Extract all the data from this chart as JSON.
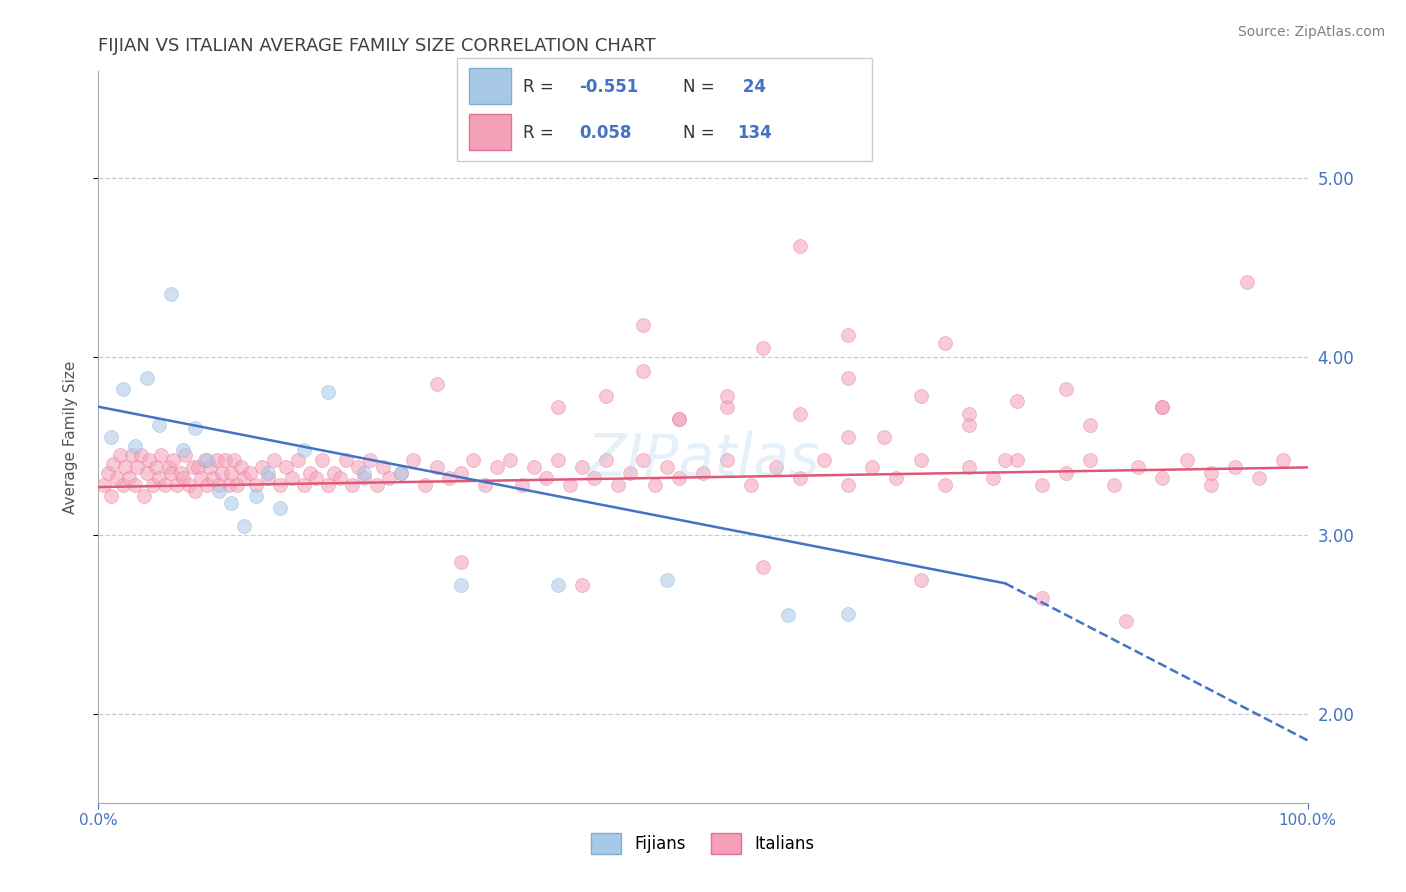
{
  "title": "FIJIAN VS ITALIAN AVERAGE FAMILY SIZE CORRELATION CHART",
  "source": "Source: ZipAtlas.com",
  "ylabel": "Average Family Size",
  "xlim": [
    0.0,
    1.0
  ],
  "ylim": [
    1.5,
    5.6
  ],
  "yticks": [
    2.0,
    3.0,
    4.0,
    5.0
  ],
  "ytick_labels": [
    "2.00",
    "3.00",
    "4.00",
    "5.00"
  ],
  "xticks": [
    0.0,
    1.0
  ],
  "xtick_labels": [
    "0.0%",
    "100.0%"
  ],
  "fijian_color": "#a8c8e8",
  "fijian_edge_color": "#7bafd4",
  "italian_color": "#f4a0b8",
  "italian_edge_color": "#e87090",
  "trendline_fijian_color": "#4472c4",
  "trendline_italian_color": "#e05878",
  "background_color": "#ffffff",
  "grid_color": "#cccccc",
  "title_color": "#404040",
  "axis_color": "#4472c4",
  "marker_size": 100,
  "marker_alpha": 0.55,
  "fijian_r_color": "#4472c4",
  "italian_r_color": "#4472c4",
  "fijian_trendline_x0": 0.0,
  "fijian_trendline_y0": 3.72,
  "fijian_trendline_x1": 0.75,
  "fijian_trendline_y1": 2.73,
  "fijian_trendline_dash_x1": 1.0,
  "fijian_trendline_dash_y1": 1.85,
  "italian_trendline_x0": 0.0,
  "italian_trendline_y0": 3.27,
  "italian_trendline_x1": 1.0,
  "italian_trendline_y1": 3.38,
  "fijian_x": [
    0.01,
    0.02,
    0.03,
    0.04,
    0.05,
    0.06,
    0.07,
    0.08,
    0.09,
    0.1,
    0.11,
    0.12,
    0.13,
    0.14,
    0.15,
    0.17,
    0.19,
    0.22,
    0.25,
    0.3,
    0.38,
    0.47,
    0.57,
    0.62
  ],
  "fijian_y": [
    3.55,
    3.82,
    3.5,
    3.88,
    3.62,
    4.35,
    3.48,
    3.6,
    3.42,
    3.25,
    3.18,
    3.05,
    3.22,
    3.35,
    3.15,
    3.48,
    3.8,
    3.35,
    3.35,
    2.72,
    2.72,
    2.75,
    2.55,
    2.56
  ],
  "italian_x": [
    0.005,
    0.008,
    0.01,
    0.012,
    0.015,
    0.018,
    0.02,
    0.022,
    0.025,
    0.028,
    0.03,
    0.032,
    0.035,
    0.038,
    0.04,
    0.042,
    0.045,
    0.048,
    0.05,
    0.052,
    0.055,
    0.058,
    0.06,
    0.062,
    0.065,
    0.068,
    0.07,
    0.072,
    0.075,
    0.078,
    0.08,
    0.082,
    0.085,
    0.088,
    0.09,
    0.092,
    0.095,
    0.098,
    0.1,
    0.102,
    0.105,
    0.108,
    0.11,
    0.112,
    0.115,
    0.118,
    0.12,
    0.125,
    0.13,
    0.135,
    0.14,
    0.145,
    0.15,
    0.155,
    0.16,
    0.165,
    0.17,
    0.175,
    0.18,
    0.185,
    0.19,
    0.195,
    0.2,
    0.205,
    0.21,
    0.215,
    0.22,
    0.225,
    0.23,
    0.235,
    0.24,
    0.25,
    0.26,
    0.27,
    0.28,
    0.29,
    0.3,
    0.31,
    0.32,
    0.33,
    0.34,
    0.35,
    0.36,
    0.37,
    0.38,
    0.39,
    0.4,
    0.41,
    0.42,
    0.43,
    0.44,
    0.45,
    0.46,
    0.47,
    0.48,
    0.5,
    0.52,
    0.54,
    0.56,
    0.58,
    0.6,
    0.62,
    0.64,
    0.66,
    0.68,
    0.7,
    0.72,
    0.74,
    0.76,
    0.78,
    0.8,
    0.82,
    0.84,
    0.86,
    0.88,
    0.9,
    0.92,
    0.94,
    0.96,
    0.98,
    0.42,
    0.48,
    0.52,
    0.58,
    0.62,
    0.68,
    0.72,
    0.76,
    0.82,
    0.88,
    0.45,
    0.55,
    0.62,
    0.7
  ],
  "italian_y": [
    3.28,
    3.35,
    3.22,
    3.4,
    3.32,
    3.45,
    3.28,
    3.38,
    3.32,
    3.45,
    3.28,
    3.38,
    3.45,
    3.22,
    3.35,
    3.42,
    3.28,
    3.38,
    3.32,
    3.45,
    3.28,
    3.38,
    3.35,
    3.42,
    3.28,
    3.35,
    3.32,
    3.45,
    3.28,
    3.38,
    3.25,
    3.38,
    3.32,
    3.42,
    3.28,
    3.38,
    3.32,
    3.42,
    3.28,
    3.35,
    3.42,
    3.28,
    3.35,
    3.42,
    3.28,
    3.38,
    3.32,
    3.35,
    3.28,
    3.38,
    3.32,
    3.42,
    3.28,
    3.38,
    3.32,
    3.42,
    3.28,
    3.35,
    3.32,
    3.42,
    3.28,
    3.35,
    3.32,
    3.42,
    3.28,
    3.38,
    3.32,
    3.42,
    3.28,
    3.38,
    3.32,
    3.35,
    3.42,
    3.28,
    3.38,
    3.32,
    3.35,
    3.42,
    3.28,
    3.38,
    3.42,
    3.28,
    3.38,
    3.32,
    3.42,
    3.28,
    3.38,
    3.32,
    3.42,
    3.28,
    3.35,
    3.42,
    3.28,
    3.38,
    3.32,
    3.35,
    3.42,
    3.28,
    3.38,
    3.32,
    3.42,
    3.28,
    3.38,
    3.32,
    3.42,
    3.28,
    3.38,
    3.32,
    3.42,
    3.28,
    3.35,
    3.42,
    3.28,
    3.38,
    3.32,
    3.42,
    3.28,
    3.38,
    3.32,
    3.42,
    3.78,
    3.65,
    3.72,
    3.68,
    3.55,
    3.78,
    3.68,
    3.75,
    3.62,
    3.72,
    4.18,
    4.05,
    4.12,
    4.08
  ],
  "italian_outlier_x": [
    0.58,
    0.28,
    0.45,
    0.52,
    0.62,
    0.38,
    0.48,
    0.3,
    0.72,
    0.8,
    0.88,
    0.65,
    0.75,
    0.92,
    0.4,
    0.55,
    0.68,
    0.78,
    0.85,
    0.95
  ],
  "italian_outlier_y": [
    4.62,
    3.85,
    3.92,
    3.78,
    3.88,
    3.72,
    3.65,
    2.85,
    3.62,
    3.82,
    3.72,
    3.55,
    3.42,
    3.35,
    2.72,
    2.82,
    2.75,
    2.65,
    2.52,
    4.42
  ]
}
